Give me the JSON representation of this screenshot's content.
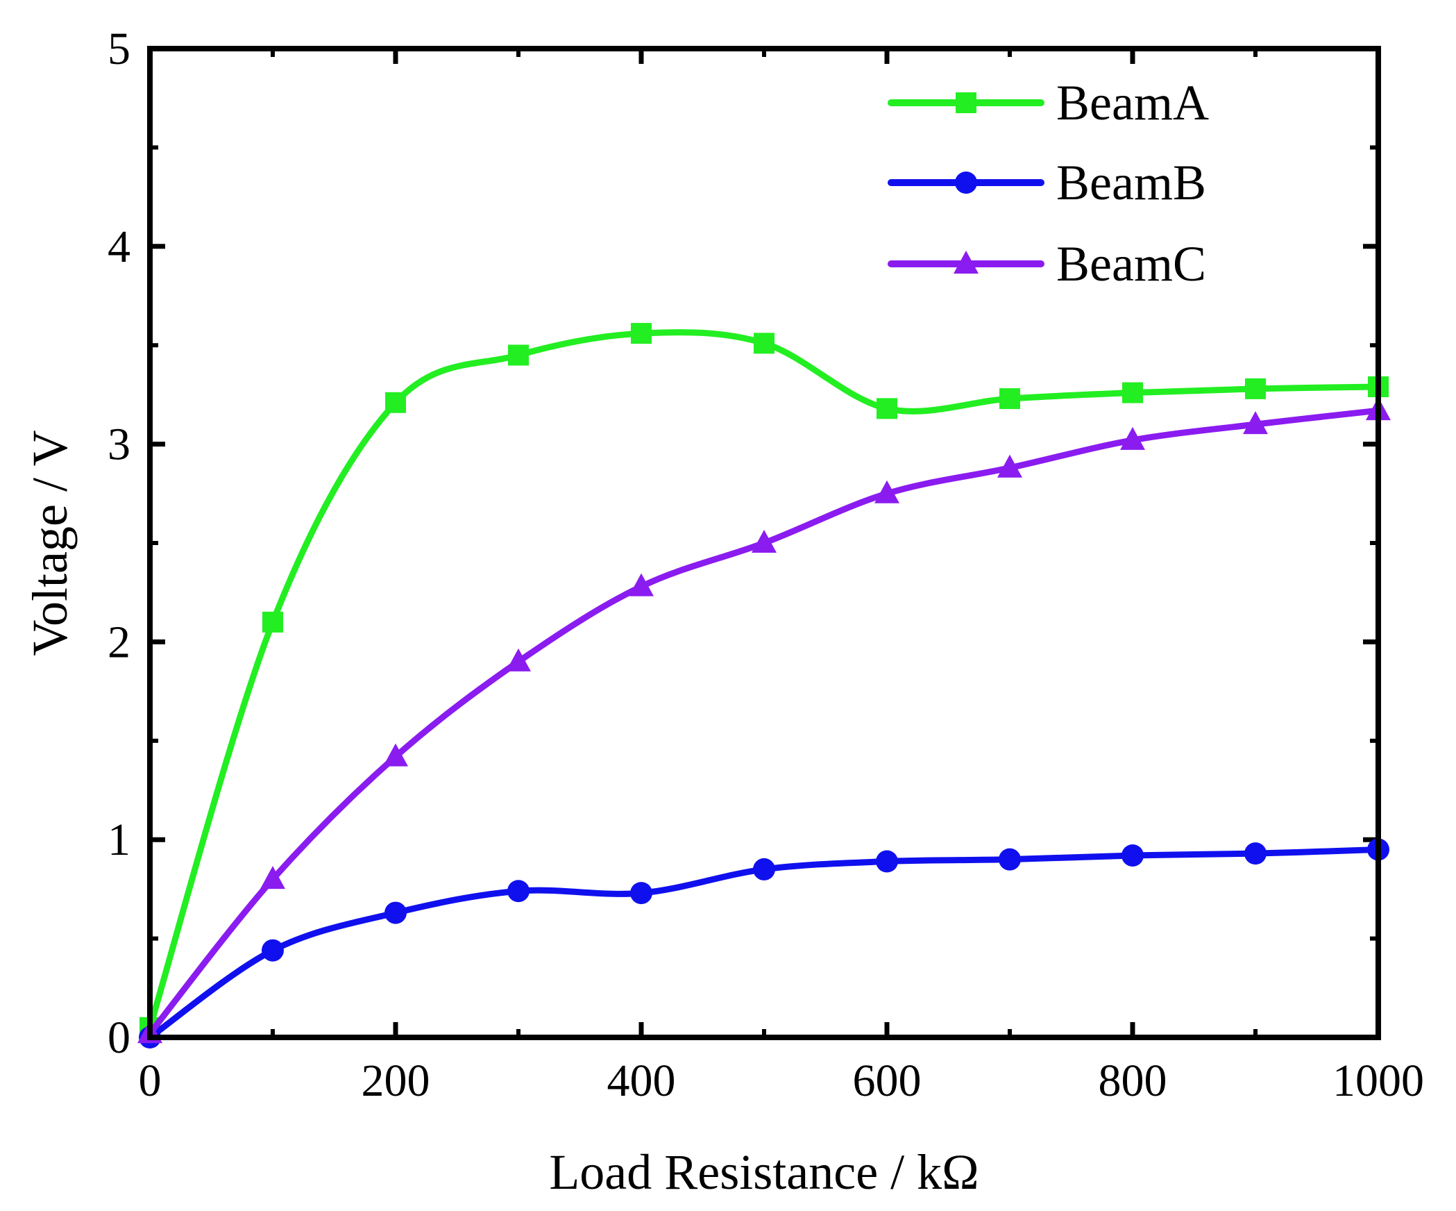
{
  "chart_data": {
    "type": "line",
    "title": "",
    "xlabel": "Load Resistance / kΩ",
    "ylabel": "Voltage / V",
    "xlim": [
      0,
      1000
    ],
    "ylim": [
      0,
      5
    ],
    "xticks": [
      0,
      200,
      400,
      600,
      800,
      1000
    ],
    "xtick_labels": [
      "0",
      "200",
      "400",
      "600",
      "800",
      "1000"
    ],
    "yticks": [
      0,
      1,
      2,
      3,
      4,
      5
    ],
    "ytick_labels": [
      "0",
      "1",
      "2",
      "3",
      "4",
      "5"
    ],
    "grid": false,
    "legend_position": "top-right",
    "x": [
      0,
      100,
      200,
      300,
      400,
      500,
      600,
      700,
      800,
      900,
      1000
    ],
    "series": [
      {
        "name": "BeamA",
        "color": "#22ee22",
        "marker": "square",
        "values": [
          0.05,
          2.1,
          3.21,
          3.45,
          3.56,
          3.51,
          3.18,
          3.23,
          3.26,
          3.28,
          3.29
        ]
      },
      {
        "name": "BeamB",
        "color": "#1010ee",
        "marker": "circle",
        "values": [
          0.0,
          0.44,
          0.63,
          0.74,
          0.73,
          0.85,
          0.89,
          0.9,
          0.92,
          0.93,
          0.95
        ]
      },
      {
        "name": "BeamC",
        "color": "#8a1cf0",
        "marker": "triangle",
        "values": [
          0.02,
          0.8,
          1.42,
          1.9,
          2.28,
          2.5,
          2.75,
          2.88,
          3.02,
          3.1,
          3.17
        ]
      }
    ]
  }
}
